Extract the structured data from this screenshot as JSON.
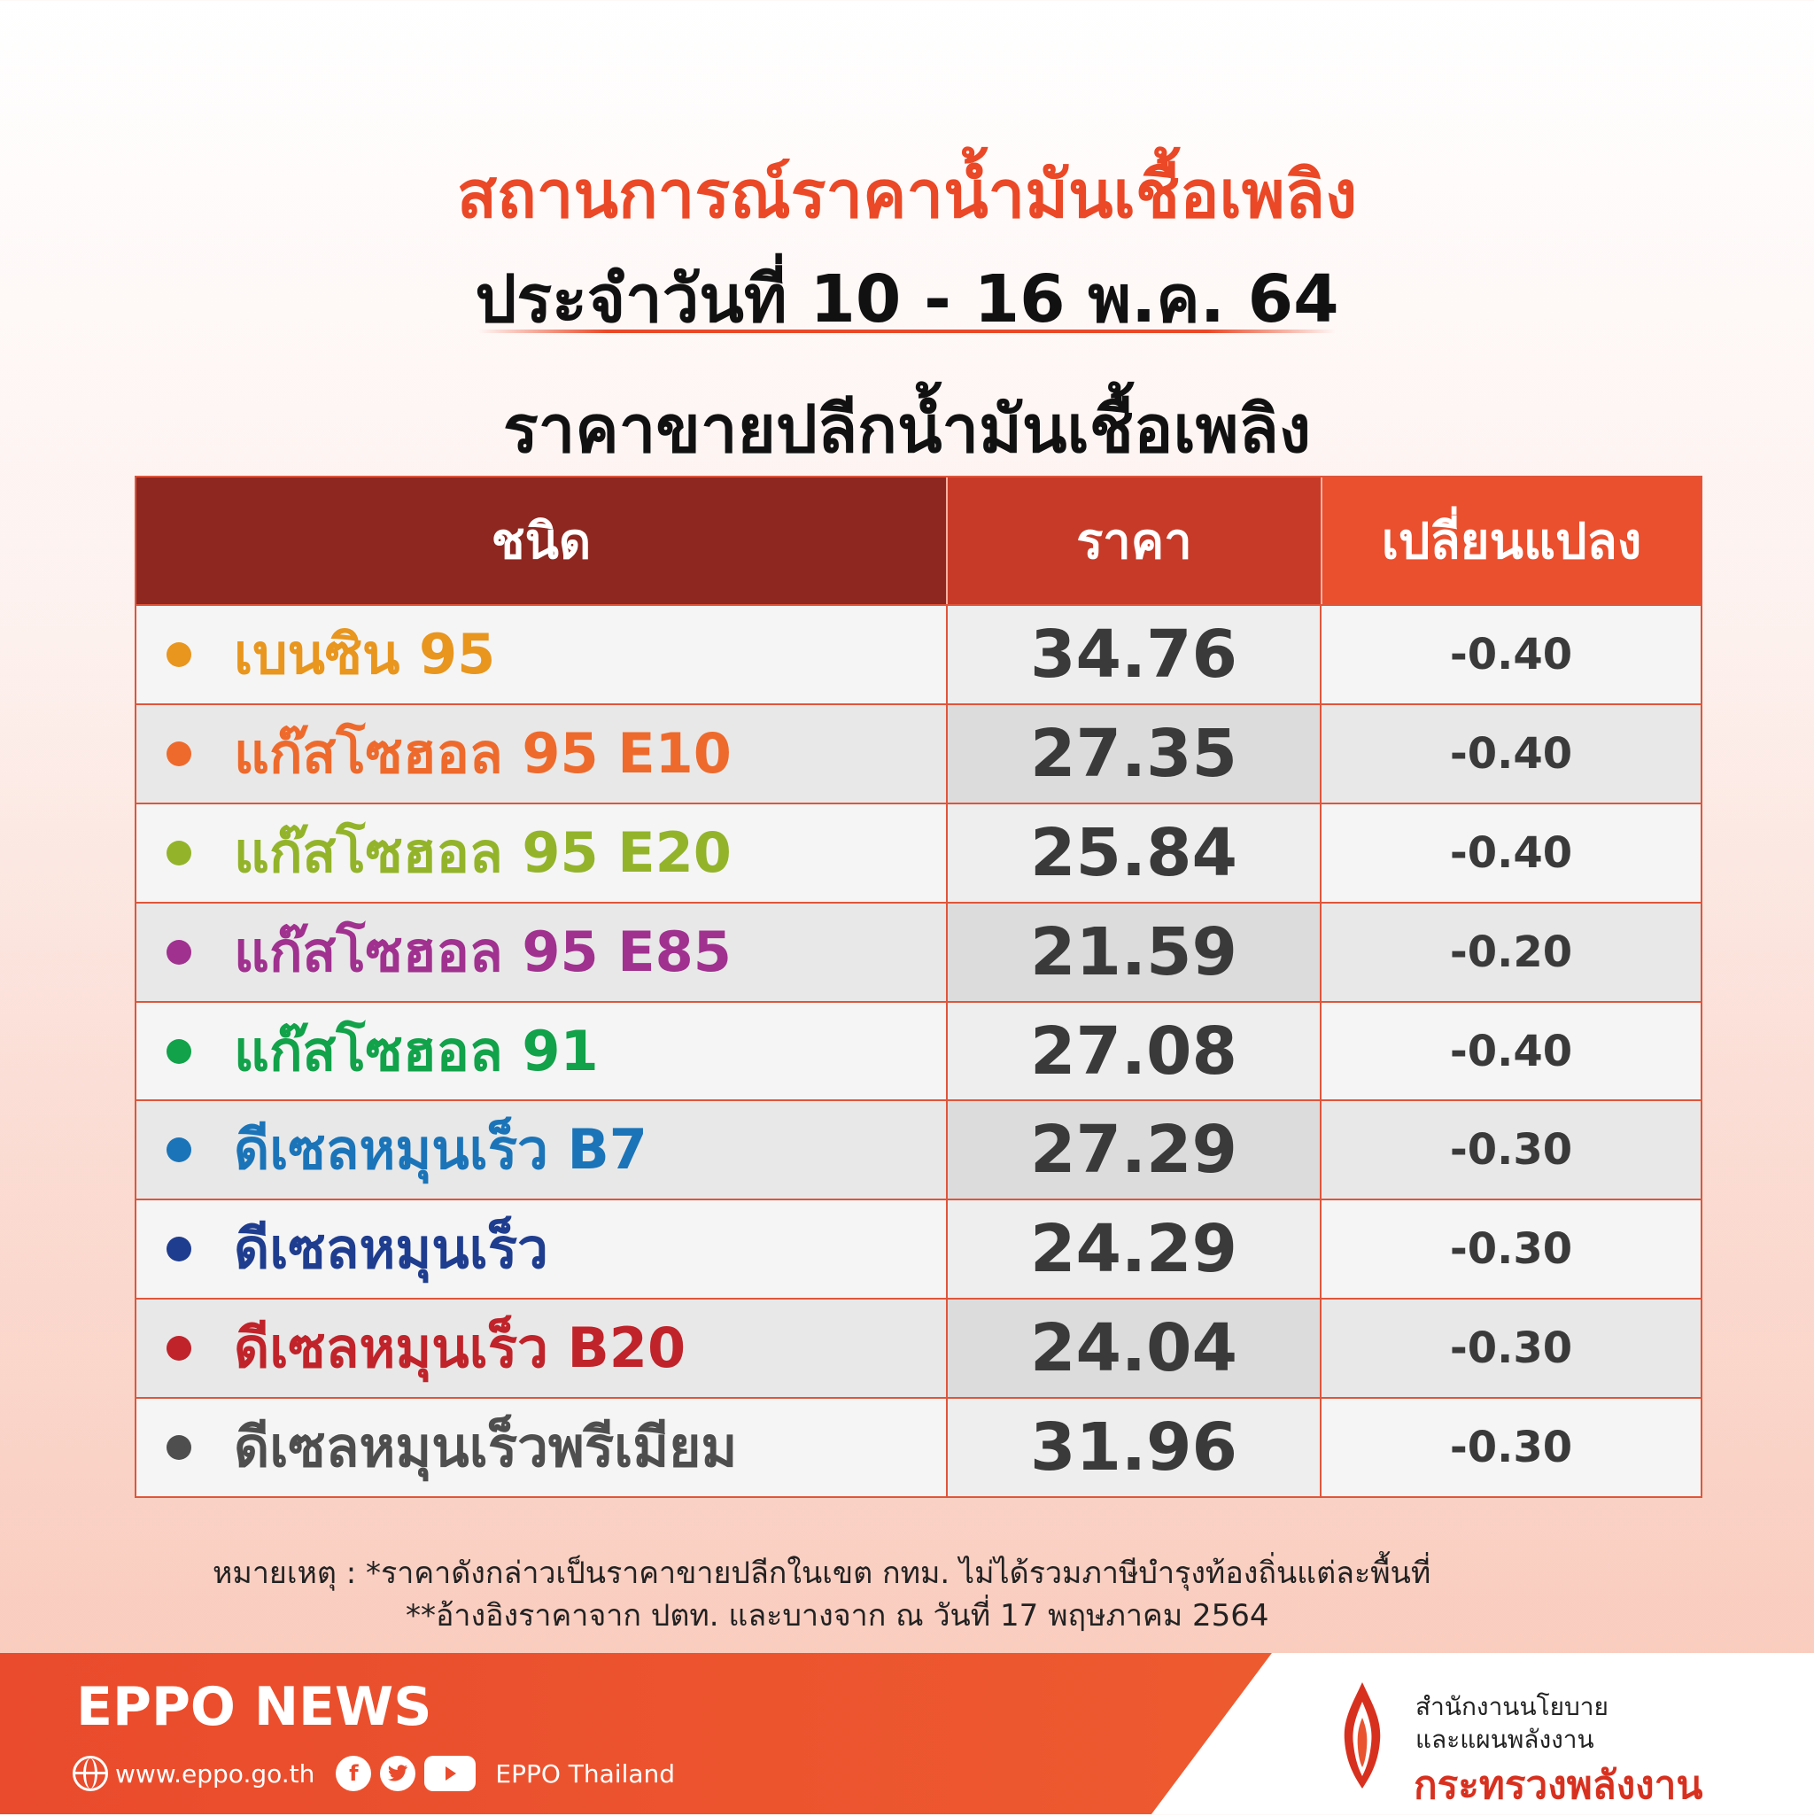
{
  "header": {
    "title": "สถานการณ์ราคาน้ำมันเชื้อเพลิง",
    "date_line": "ประจำวันที่ 10 - 16 พ.ค. 64",
    "subtitle": "ราคาขายปลีกน้ำมันเชื้อเพลิง"
  },
  "table": {
    "columns": [
      "ชนิด",
      "ราคา",
      "เปลี่ยนแปลง"
    ],
    "rows": [
      {
        "name": "เบนซิน 95",
        "price": "34.76",
        "change": "-0.40",
        "color": "#e8961e"
      },
      {
        "name": "แก๊สโซฮอล 95 E10",
        "price": "27.35",
        "change": "-0.40",
        "color": "#ee6a2c"
      },
      {
        "name": "แก๊สโซฮอล 95 E20",
        "price": "25.84",
        "change": "-0.40",
        "color": "#93b42a"
      },
      {
        "name": "แก๊สโซฮอล 95 E85",
        "price": "21.59",
        "change": "-0.20",
        "color": "#a0318f"
      },
      {
        "name": "แก๊สโซฮอล 91",
        "price": "27.08",
        "change": "-0.40",
        "color": "#11a24a"
      },
      {
        "name": "ดีเซลหมุนเร็ว B7",
        "price": "27.29",
        "change": "-0.30",
        "color": "#1b74b8"
      },
      {
        "name": "ดีเซลหมุนเร็ว",
        "price": "24.29",
        "change": "-0.30",
        "color": "#1f3d8f"
      },
      {
        "name": "ดีเซลหมุนเร็ว B20",
        "price": "24.04",
        "change": "-0.30",
        "color": "#c0232a"
      },
      {
        "name": "ดีเซลหมุนเร็วพรีเมียม",
        "price": "31.96",
        "change": "-0.30",
        "color": "#4e4e4e"
      }
    ]
  },
  "notes": {
    "line1": "หมายเหตุ :  *ราคาดังกล่าวเป็นราคาขายปลีกในเขต กทม. ไม่ได้รวมภาษีบำรุงท้องถิ่นแต่ละพื้นที่",
    "line2": "**อ้างอิงราคาจาก ปตท. และบางจาก ณ วันที่ 17 พฤษภาคม 2564"
  },
  "footer": {
    "brand": "EPPO NEWS",
    "website": "www.eppo.go.th",
    "social_name": "EPPO Thailand",
    "icons": [
      "globe-icon",
      "facebook-icon",
      "twitter-icon",
      "youtube-icon"
    ],
    "org_line1": "สำนักงานนโยบาย",
    "org_line2": "และแผนพลังงาน",
    "ministry": "กระทรวงพลังงาน"
  }
}
